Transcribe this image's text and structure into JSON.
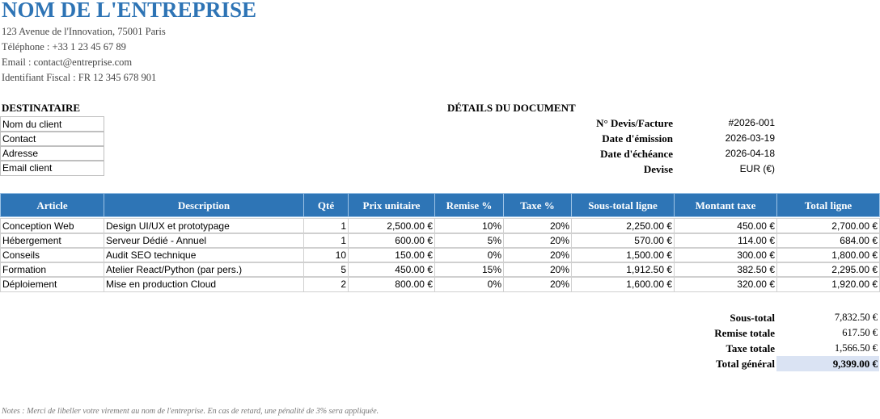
{
  "header": {
    "company": "NOM DE L'ENTREPRISE",
    "lines": [
      "123 Avenue de l'Innovation, 75001 Paris",
      "Téléphone : +33 1 23 45 67 89",
      "Email : contact@entreprise.com",
      "Identifiant Fiscal : FR 12 345 678 901"
    ]
  },
  "recipient": {
    "title": "DESTINATAIRE",
    "fields": [
      "Nom du client",
      "Contact",
      "Adresse",
      "Email client"
    ]
  },
  "details": {
    "title": "DÉTAILS DU DOCUMENT",
    "rows": [
      [
        "N° Devis/Facture",
        "#2026-001"
      ],
      [
        "Date d'émission",
        "2026-03-19"
      ],
      [
        "Date d'échéance",
        "2026-04-18"
      ],
      [
        "Devise",
        "EUR (€)"
      ]
    ]
  },
  "table": {
    "columns": [
      "Article",
      "Description",
      "Qté",
      "Prix unitaire",
      "Remise %",
      "Taxe %",
      "Sous-total ligne",
      "Montant taxe",
      "Total ligne"
    ],
    "rows": [
      [
        "Conception Web",
        "Design UI/UX et prototypage",
        "1",
        "2,500.00 €",
        "10%",
        "20%",
        "2,250.00 €",
        "450.00 €",
        "2,700.00 €"
      ],
      [
        "Hébergement",
        "Serveur Dédié - Annuel",
        "1",
        "600.00 €",
        "5%",
        "20%",
        "570.00 €",
        "114.00 €",
        "684.00 €"
      ],
      [
        "Conseils",
        "Audit SEO technique",
        "10",
        "150.00 €",
        "0%",
        "20%",
        "1,500.00 €",
        "300.00 €",
        "1,800.00 €"
      ],
      [
        "Formation",
        "Atelier React/Python (par pers.)",
        "5",
        "450.00 €",
        "15%",
        "20%",
        "1,912.50 €",
        "382.50 €",
        "2,295.00 €"
      ],
      [
        "Déploiement",
        "Mise en production Cloud",
        "2",
        "800.00 €",
        "0%",
        "20%",
        "1,600.00 €",
        "320.00 €",
        "1,920.00 €"
      ]
    ]
  },
  "totals": {
    "rows": [
      [
        "Sous-total",
        "7,832.50 €"
      ],
      [
        "Remise totale",
        "617.50 €"
      ],
      [
        "Taxe totale",
        "1,566.50 €"
      ],
      [
        "Total général",
        "9,399.00 €"
      ]
    ]
  },
  "notes": "Notes : Merci de libeller votre virement au nom de l'entreprise. En cas de retard, une pénalité de 3% sera appliquée."
}
